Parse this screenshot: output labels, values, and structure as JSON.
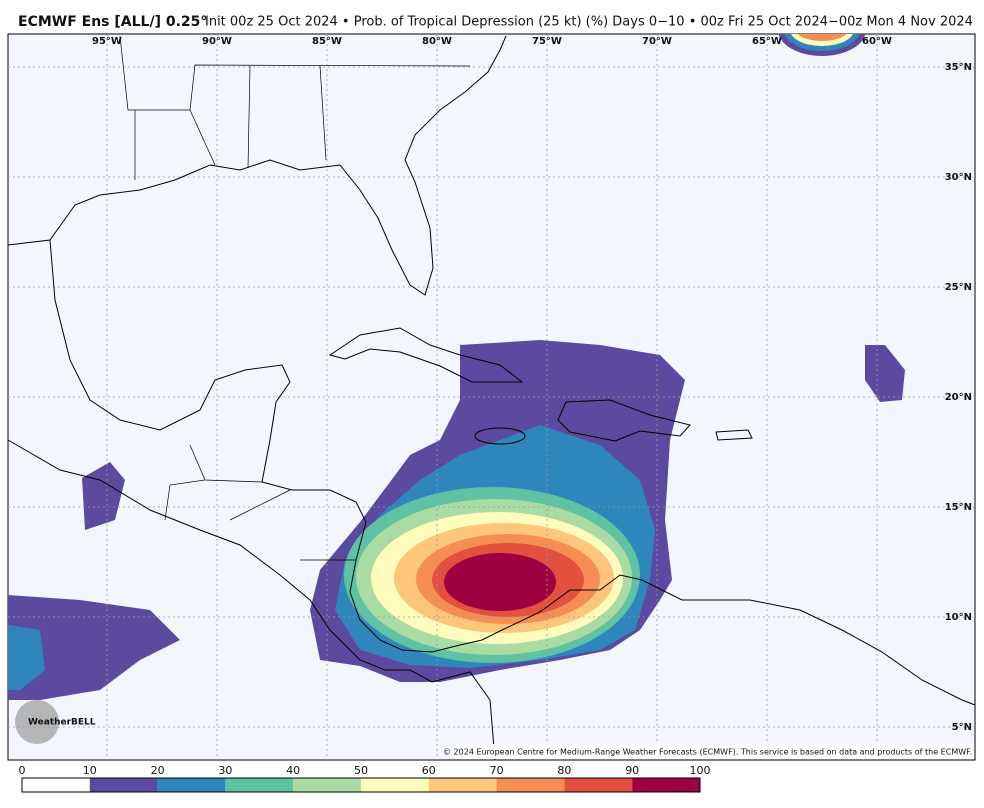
{
  "header": {
    "model": "ECMWF Ens [ALL/] 0.25°",
    "description": "Init 00z 25 Oct 2024 • Prob. of Tropical Depression (25 kt) (%)  Days 0−10 • 00z Fri 25 Oct 2024−00z Mon 4 Nov 2024"
  },
  "map": {
    "lon_labels": [
      {
        "value": -95,
        "label": "95°W"
      },
      {
        "value": -90,
        "label": "90°W"
      },
      {
        "value": -85,
        "label": "85°W"
      },
      {
        "value": -80,
        "label": "80°W"
      },
      {
        "value": -75,
        "label": "75°W"
      },
      {
        "value": -70,
        "label": "70°W"
      },
      {
        "value": -65,
        "label": "65°W"
      },
      {
        "value": -60,
        "label": "60°W"
      }
    ],
    "lat_labels": [
      {
        "value": 35,
        "label": "35°N"
      },
      {
        "value": 30,
        "label": "30°N"
      },
      {
        "value": 25,
        "label": "25°N"
      },
      {
        "value": 20,
        "label": "20°N"
      },
      {
        "value": 15,
        "label": "15°N"
      },
      {
        "value": 10,
        "label": "10°N"
      },
      {
        "value": 5,
        "label": "5°N"
      }
    ],
    "logo": "WeatherBELL",
    "copyright": "© 2024 European Centre for Medium-Range Weather Forecasts (ECMWF). This service is based on data and products of the ECMWF."
  },
  "colorbar": {
    "ticks": [
      0,
      10,
      20,
      30,
      40,
      50,
      60,
      70,
      80,
      90,
      100
    ],
    "colors": [
      "#ffffff",
      "#5b4a9f",
      "#2f86bc",
      "#5fc2a4",
      "#a9dba2",
      "#fdfcbd",
      "#fcc67c",
      "#f68d54",
      "#e4503f",
      "#9e0142"
    ]
  }
}
